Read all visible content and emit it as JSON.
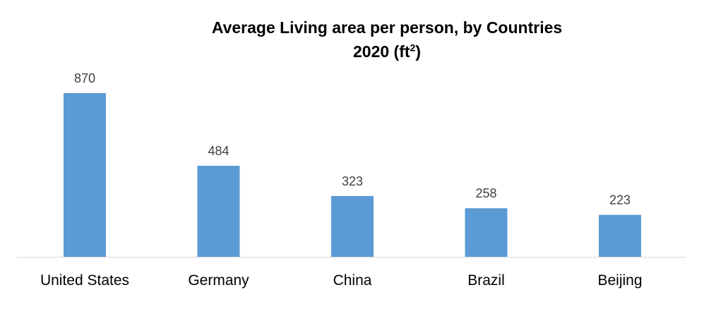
{
  "chart_data": {
    "type": "bar",
    "title_line1": "Average Living area per person, by Countries",
    "title_line2_prefix": "2020  (ft",
    "title_line2_sup": "2",
    "title_line2_suffix": ")",
    "categories": [
      "United States",
      "Germany",
      "China",
      "Brazil",
      "Beijing"
    ],
    "values": [
      870,
      484,
      323,
      258,
      223
    ],
    "data_labels": [
      "870",
      "484",
      "323",
      "258",
      "223"
    ],
    "xlabel": "",
    "ylabel": "",
    "ylim": [
      0,
      870
    ],
    "grid": false,
    "legend": "none",
    "bar_color": "#5B9BD5",
    "axis_color": "#D9D9D9"
  }
}
